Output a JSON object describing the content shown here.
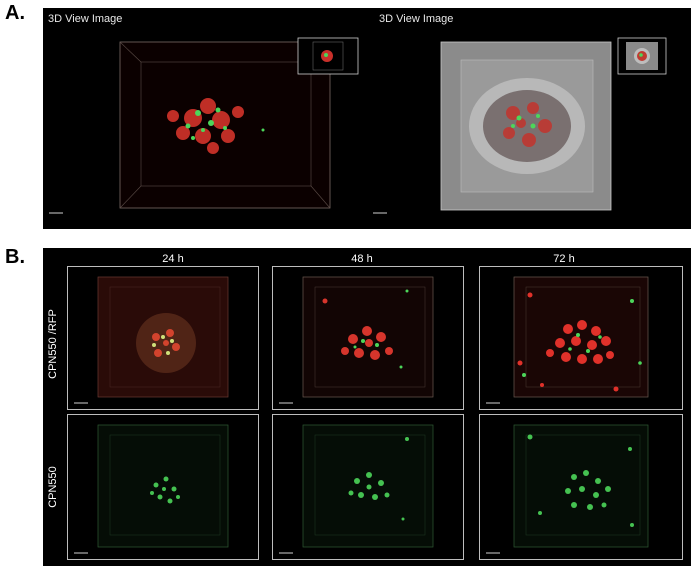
{
  "panel_a": {
    "letter": "A.",
    "left_view_title": "3D View Image",
    "right_view_title": "3D View Image"
  },
  "panel_b": {
    "letter": "B.",
    "columns": [
      "24 h",
      "48 h",
      "72 h"
    ],
    "rows": [
      "CPN550 /RFP",
      "CPN550"
    ]
  },
  "colors": {
    "background": "#000000",
    "red_channel": "#e0312a",
    "green_channel": "#4cd65a",
    "box_red": "#6b2a22",
    "box_green": "#2f5a35"
  }
}
